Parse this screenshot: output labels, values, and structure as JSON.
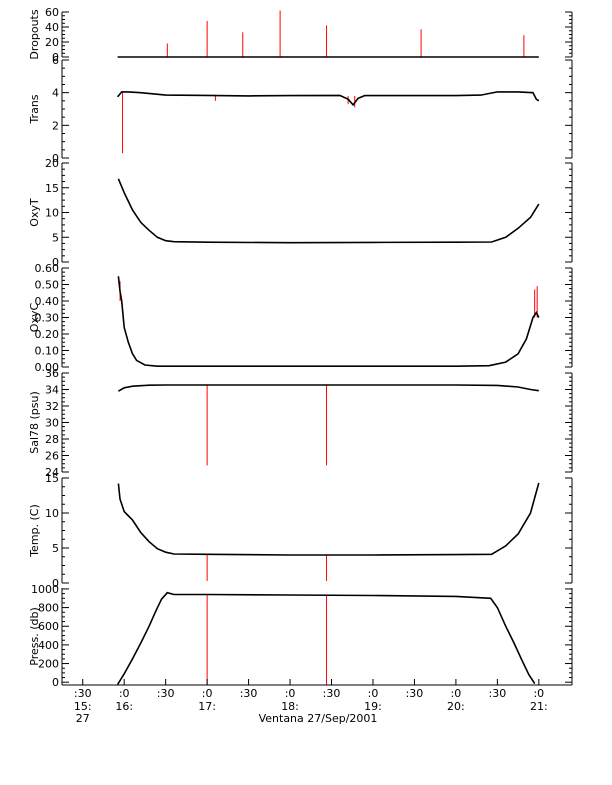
{
  "figure": {
    "caption": "Ventana 27/Sep/2001",
    "time_ticks": [
      {
        "t": 15.5,
        "label": ":30",
        "hour_label": "15:",
        "day_label": "27"
      },
      {
        "t": 16.0,
        "label": ":0",
        "hour_label": "16:",
        "day_label": ""
      },
      {
        "t": 16.5,
        "label": ":30",
        "hour_label": "",
        "day_label": ""
      },
      {
        "t": 17.0,
        "label": ":0",
        "hour_label": "17:",
        "day_label": ""
      },
      {
        "t": 17.5,
        "label": ":30",
        "hour_label": "",
        "day_label": ""
      },
      {
        "t": 18.0,
        "label": ":0",
        "hour_label": "18:",
        "day_label": ""
      },
      {
        "t": 18.5,
        "label": ":30",
        "hour_label": "",
        "day_label": ""
      },
      {
        "t": 19.0,
        "label": ":0",
        "hour_label": "19:",
        "day_label": ""
      },
      {
        "t": 19.5,
        "label": ":30",
        "hour_label": "",
        "day_label": ""
      },
      {
        "t": 20.0,
        "label": ":0",
        "hour_label": "20:",
        "day_label": ""
      },
      {
        "t": 20.5,
        "label": ":30",
        "hour_label": "",
        "day_label": ""
      },
      {
        "t": 21.0,
        "label": ":0",
        "hour_label": "21:",
        "day_label": ""
      }
    ],
    "colors": {
      "data": "#000000",
      "spike": "#ff0000",
      "axis": "#000000"
    }
  },
  "chart_data": [
    {
      "type": "line",
      "ylabel": "Dropouts",
      "ylim": [
        0,
        60
      ],
      "yticks": [
        {
          "v": 0,
          "label": "0"
        },
        {
          "v": 20,
          "label": "20"
        },
        {
          "v": 40,
          "label": "40"
        },
        {
          "v": 60,
          "label": "60"
        }
      ],
      "series": [
        {
          "x": [
            15.92,
            21.0
          ],
          "y": [
            0,
            0
          ]
        }
      ],
      "spikes": [
        {
          "x": 16.52,
          "y0": 0,
          "y1": 18
        },
        {
          "x": 17.0,
          "y0": 0,
          "y1": 48
        },
        {
          "x": 17.43,
          "y0": 0,
          "y1": 33
        },
        {
          "x": 17.88,
          "y0": 0,
          "y1": 62
        },
        {
          "x": 18.44,
          "y0": 0,
          "y1": 42
        },
        {
          "x": 19.58,
          "y0": 0,
          "y1": 37
        },
        {
          "x": 20.82,
          "y0": 0,
          "y1": 29
        }
      ]
    },
    {
      "type": "line",
      "ylabel": "Trans",
      "ylim": [
        0,
        6
      ],
      "yticks": [
        {
          "v": 0,
          "label": "0"
        },
        {
          "v": 2,
          "label": "2"
        },
        {
          "v": 4,
          "label": "4"
        },
        {
          "v": 6,
          "label": "6"
        }
      ],
      "series": [
        {
          "x": [
            15.92,
            15.97,
            16.05,
            16.2,
            16.5,
            17.0,
            17.5,
            18.0,
            18.6,
            18.7,
            18.76,
            18.82,
            18.9,
            19.5,
            20.0,
            20.3,
            20.5,
            20.75,
            20.93,
            20.97,
            21.0
          ],
          "y": [
            3.75,
            4.05,
            4.05,
            4.0,
            3.85,
            3.83,
            3.8,
            3.82,
            3.83,
            3.6,
            3.25,
            3.65,
            3.82,
            3.82,
            3.82,
            3.85,
            4.05,
            4.05,
            4.0,
            3.6,
            3.5
          ]
        }
      ],
      "spikes": [
        {
          "x": 15.98,
          "y0": 4.0,
          "y1": 0.3
        },
        {
          "x": 17.1,
          "y0": 3.8,
          "y1": 3.5
        },
        {
          "x": 18.7,
          "y0": 3.8,
          "y1": 3.3
        },
        {
          "x": 18.78,
          "y0": 3.8,
          "y1": 3.1
        }
      ]
    },
    {
      "type": "line",
      "ylabel": "OxyT",
      "ylim": [
        0,
        20
      ],
      "yticks": [
        {
          "v": 0,
          "label": "0"
        },
        {
          "v": 5,
          "label": "5"
        },
        {
          "v": 10,
          "label": "10"
        },
        {
          "v": 15,
          "label": "15"
        },
        {
          "v": 20,
          "label": "20"
        }
      ],
      "series": [
        {
          "x": [
            15.93,
            16.0,
            16.1,
            16.2,
            16.3,
            16.4,
            16.5,
            16.6,
            17.0,
            18.0,
            19.0,
            20.0,
            20.43,
            20.6,
            20.75,
            20.9,
            21.0
          ],
          "y": [
            16.8,
            14.0,
            10.5,
            8.0,
            6.4,
            5.0,
            4.3,
            4.1,
            4.0,
            3.9,
            3.95,
            4.0,
            4.05,
            5.0,
            6.8,
            9.0,
            11.7
          ]
        }
      ],
      "spikes": []
    },
    {
      "type": "line",
      "ylabel": "OxyC",
      "ylim": [
        0,
        0.6
      ],
      "yticks": [
        {
          "v": 0,
          "label": "0.00"
        },
        {
          "v": 0.1,
          "label": "0.10"
        },
        {
          "v": 0.2,
          "label": "0.20"
        },
        {
          "v": 0.3,
          "label": "0.30"
        },
        {
          "v": 0.4,
          "label": "0.40"
        },
        {
          "v": 0.5,
          "label": "0.50"
        },
        {
          "v": 0.6,
          "label": "0.60"
        }
      ],
      "series": [
        {
          "x": [
            15.93,
            15.95,
            15.97,
            16.0,
            16.05,
            16.1,
            16.15,
            16.25,
            16.4,
            17.0,
            18.0,
            19.0,
            20.0,
            20.4,
            20.6,
            20.75,
            20.85,
            20.93,
            20.97,
            21.0
          ],
          "y": [
            0.55,
            0.46,
            0.4,
            0.24,
            0.15,
            0.08,
            0.04,
            0.012,
            0.005,
            0.005,
            0.005,
            0.005,
            0.005,
            0.008,
            0.03,
            0.08,
            0.17,
            0.3,
            0.33,
            0.3
          ]
        }
      ],
      "spikes": [
        {
          "x": 15.95,
          "y0": 0.52,
          "y1": 0.4
        },
        {
          "x": 20.95,
          "y0": 0.3,
          "y1": 0.47
        },
        {
          "x": 20.98,
          "y0": 0.3,
          "y1": 0.49
        }
      ]
    },
    {
      "type": "line",
      "ylabel": "Sal78 (psu)",
      "ylim": [
        24,
        36
      ],
      "yticks": [
        {
          "v": 24,
          "label": "24"
        },
        {
          "v": 26,
          "label": "26"
        },
        {
          "v": 28,
          "label": "28"
        },
        {
          "v": 30,
          "label": "30"
        },
        {
          "v": 32,
          "label": "32"
        },
        {
          "v": 34,
          "label": "34"
        },
        {
          "v": 36,
          "label": "36"
        }
      ],
      "series": [
        {
          "x": [
            15.93,
            16.0,
            16.1,
            16.3,
            16.5,
            17.0,
            18.0,
            19.0,
            20.0,
            20.5,
            20.75,
            20.9,
            21.0
          ],
          "y": [
            33.8,
            34.2,
            34.4,
            34.52,
            34.55,
            34.55,
            34.55,
            34.55,
            34.55,
            34.5,
            34.3,
            34.0,
            33.85
          ]
        }
      ],
      "spikes": [
        {
          "x": 17.0,
          "y0": 34.5,
          "y1": 24.8
        },
        {
          "x": 18.44,
          "y0": 34.5,
          "y1": 24.8
        }
      ]
    },
    {
      "type": "line",
      "ylabel": "Temp. (C)",
      "ylim": [
        0,
        15
      ],
      "yticks": [
        {
          "v": 0,
          "label": "0"
        },
        {
          "v": 5,
          "label": "5"
        },
        {
          "v": 10,
          "label": "10"
        },
        {
          "v": 15,
          "label": "15"
        }
      ],
      "series": [
        {
          "x": [
            15.93,
            15.95,
            16.0,
            16.1,
            16.2,
            16.3,
            16.4,
            16.5,
            16.6,
            17.0,
            18.0,
            19.0,
            20.0,
            20.43,
            20.6,
            20.75,
            20.9,
            20.97,
            21.0
          ],
          "y": [
            14.2,
            12.0,
            10.2,
            9.0,
            7.2,
            5.9,
            4.9,
            4.4,
            4.15,
            4.1,
            4.0,
            4.0,
            4.05,
            4.1,
            5.3,
            7.0,
            10.0,
            13.0,
            14.3
          ]
        }
      ],
      "spikes": [
        {
          "x": 17.0,
          "y0": 4.1,
          "y1": 0.3
        },
        {
          "x": 18.44,
          "y0": 4.0,
          "y1": 0.3
        }
      ]
    },
    {
      "type": "line",
      "ylabel": "Press. (db)",
      "ylim": [
        -30,
        1010
      ],
      "yticks": [
        {
          "v": 0,
          "label": "0"
        },
        {
          "v": 200,
          "label": "200"
        },
        {
          "v": 400,
          "label": "400"
        },
        {
          "v": 600,
          "label": "600"
        },
        {
          "v": 800,
          "label": "800"
        },
        {
          "v": 1000,
          "label": "1000"
        }
      ],
      "series": [
        {
          "x": [
            15.92,
            16.0,
            16.1,
            16.2,
            16.3,
            16.38,
            16.45,
            16.52,
            16.6,
            17.0,
            18.0,
            19.0,
            20.0,
            20.42,
            20.5,
            20.6,
            20.7,
            20.8,
            20.88,
            20.95
          ],
          "y": [
            -25,
            90,
            250,
            420,
            600,
            760,
            890,
            960,
            940,
            940,
            935,
            930,
            920,
            900,
            800,
            600,
            420,
            230,
            80,
            -15
          ]
        }
      ],
      "spikes": [
        {
          "x": 17.0,
          "y0": 940,
          "y1": -30
        },
        {
          "x": 18.44,
          "y0": 935,
          "y1": -30
        }
      ]
    }
  ]
}
